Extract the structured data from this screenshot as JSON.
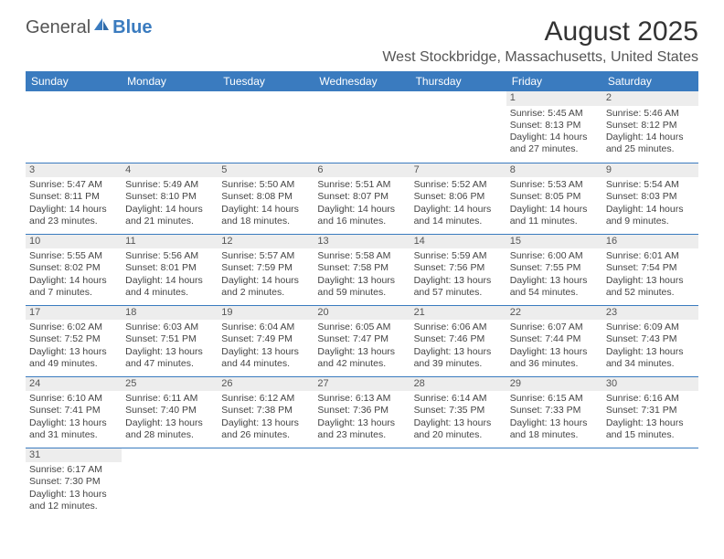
{
  "logo": {
    "general": "General",
    "blue": "Blue"
  },
  "title": "August 2025",
  "location": "West Stockbridge, Massachusetts, United States",
  "colors": {
    "header_bg": "#3a7bbf",
    "header_text": "#ffffff",
    "daynum_bg": "#ededed",
    "row_border": "#3a7bbf",
    "body_text": "#444444"
  },
  "typography": {
    "title_fontsize": 30,
    "location_fontsize": 16,
    "dayhead_fontsize": 12,
    "cell_fontsize": 10.5
  },
  "day_names": [
    "Sunday",
    "Monday",
    "Tuesday",
    "Wednesday",
    "Thursday",
    "Friday",
    "Saturday"
  ],
  "weeks": [
    [
      null,
      null,
      null,
      null,
      null,
      {
        "n": "1",
        "sr": "Sunrise: 5:45 AM",
        "ss": "Sunset: 8:13 PM",
        "d1": "Daylight: 14 hours",
        "d2": "and 27 minutes."
      },
      {
        "n": "2",
        "sr": "Sunrise: 5:46 AM",
        "ss": "Sunset: 8:12 PM",
        "d1": "Daylight: 14 hours",
        "d2": "and 25 minutes."
      }
    ],
    [
      {
        "n": "3",
        "sr": "Sunrise: 5:47 AM",
        "ss": "Sunset: 8:11 PM",
        "d1": "Daylight: 14 hours",
        "d2": "and 23 minutes."
      },
      {
        "n": "4",
        "sr": "Sunrise: 5:49 AM",
        "ss": "Sunset: 8:10 PM",
        "d1": "Daylight: 14 hours",
        "d2": "and 21 minutes."
      },
      {
        "n": "5",
        "sr": "Sunrise: 5:50 AM",
        "ss": "Sunset: 8:08 PM",
        "d1": "Daylight: 14 hours",
        "d2": "and 18 minutes."
      },
      {
        "n": "6",
        "sr": "Sunrise: 5:51 AM",
        "ss": "Sunset: 8:07 PM",
        "d1": "Daylight: 14 hours",
        "d2": "and 16 minutes."
      },
      {
        "n": "7",
        "sr": "Sunrise: 5:52 AM",
        "ss": "Sunset: 8:06 PM",
        "d1": "Daylight: 14 hours",
        "d2": "and 14 minutes."
      },
      {
        "n": "8",
        "sr": "Sunrise: 5:53 AM",
        "ss": "Sunset: 8:05 PM",
        "d1": "Daylight: 14 hours",
        "d2": "and 11 minutes."
      },
      {
        "n": "9",
        "sr": "Sunrise: 5:54 AM",
        "ss": "Sunset: 8:03 PM",
        "d1": "Daylight: 14 hours",
        "d2": "and 9 minutes."
      }
    ],
    [
      {
        "n": "10",
        "sr": "Sunrise: 5:55 AM",
        "ss": "Sunset: 8:02 PM",
        "d1": "Daylight: 14 hours",
        "d2": "and 7 minutes."
      },
      {
        "n": "11",
        "sr": "Sunrise: 5:56 AM",
        "ss": "Sunset: 8:01 PM",
        "d1": "Daylight: 14 hours",
        "d2": "and 4 minutes."
      },
      {
        "n": "12",
        "sr": "Sunrise: 5:57 AM",
        "ss": "Sunset: 7:59 PM",
        "d1": "Daylight: 14 hours",
        "d2": "and 2 minutes."
      },
      {
        "n": "13",
        "sr": "Sunrise: 5:58 AM",
        "ss": "Sunset: 7:58 PM",
        "d1": "Daylight: 13 hours",
        "d2": "and 59 minutes."
      },
      {
        "n": "14",
        "sr": "Sunrise: 5:59 AM",
        "ss": "Sunset: 7:56 PM",
        "d1": "Daylight: 13 hours",
        "d2": "and 57 minutes."
      },
      {
        "n": "15",
        "sr": "Sunrise: 6:00 AM",
        "ss": "Sunset: 7:55 PM",
        "d1": "Daylight: 13 hours",
        "d2": "and 54 minutes."
      },
      {
        "n": "16",
        "sr": "Sunrise: 6:01 AM",
        "ss": "Sunset: 7:54 PM",
        "d1": "Daylight: 13 hours",
        "d2": "and 52 minutes."
      }
    ],
    [
      {
        "n": "17",
        "sr": "Sunrise: 6:02 AM",
        "ss": "Sunset: 7:52 PM",
        "d1": "Daylight: 13 hours",
        "d2": "and 49 minutes."
      },
      {
        "n": "18",
        "sr": "Sunrise: 6:03 AM",
        "ss": "Sunset: 7:51 PM",
        "d1": "Daylight: 13 hours",
        "d2": "and 47 minutes."
      },
      {
        "n": "19",
        "sr": "Sunrise: 6:04 AM",
        "ss": "Sunset: 7:49 PM",
        "d1": "Daylight: 13 hours",
        "d2": "and 44 minutes."
      },
      {
        "n": "20",
        "sr": "Sunrise: 6:05 AM",
        "ss": "Sunset: 7:47 PM",
        "d1": "Daylight: 13 hours",
        "d2": "and 42 minutes."
      },
      {
        "n": "21",
        "sr": "Sunrise: 6:06 AM",
        "ss": "Sunset: 7:46 PM",
        "d1": "Daylight: 13 hours",
        "d2": "and 39 minutes."
      },
      {
        "n": "22",
        "sr": "Sunrise: 6:07 AM",
        "ss": "Sunset: 7:44 PM",
        "d1": "Daylight: 13 hours",
        "d2": "and 36 minutes."
      },
      {
        "n": "23",
        "sr": "Sunrise: 6:09 AM",
        "ss": "Sunset: 7:43 PM",
        "d1": "Daylight: 13 hours",
        "d2": "and 34 minutes."
      }
    ],
    [
      {
        "n": "24",
        "sr": "Sunrise: 6:10 AM",
        "ss": "Sunset: 7:41 PM",
        "d1": "Daylight: 13 hours",
        "d2": "and 31 minutes."
      },
      {
        "n": "25",
        "sr": "Sunrise: 6:11 AM",
        "ss": "Sunset: 7:40 PM",
        "d1": "Daylight: 13 hours",
        "d2": "and 28 minutes."
      },
      {
        "n": "26",
        "sr": "Sunrise: 6:12 AM",
        "ss": "Sunset: 7:38 PM",
        "d1": "Daylight: 13 hours",
        "d2": "and 26 minutes."
      },
      {
        "n": "27",
        "sr": "Sunrise: 6:13 AM",
        "ss": "Sunset: 7:36 PM",
        "d1": "Daylight: 13 hours",
        "d2": "and 23 minutes."
      },
      {
        "n": "28",
        "sr": "Sunrise: 6:14 AM",
        "ss": "Sunset: 7:35 PM",
        "d1": "Daylight: 13 hours",
        "d2": "and 20 minutes."
      },
      {
        "n": "29",
        "sr": "Sunrise: 6:15 AM",
        "ss": "Sunset: 7:33 PM",
        "d1": "Daylight: 13 hours",
        "d2": "and 18 minutes."
      },
      {
        "n": "30",
        "sr": "Sunrise: 6:16 AM",
        "ss": "Sunset: 7:31 PM",
        "d1": "Daylight: 13 hours",
        "d2": "and 15 minutes."
      }
    ],
    [
      {
        "n": "31",
        "sr": "Sunrise: 6:17 AM",
        "ss": "Sunset: 7:30 PM",
        "d1": "Daylight: 13 hours",
        "d2": "and 12 minutes."
      },
      null,
      null,
      null,
      null,
      null,
      null
    ]
  ]
}
